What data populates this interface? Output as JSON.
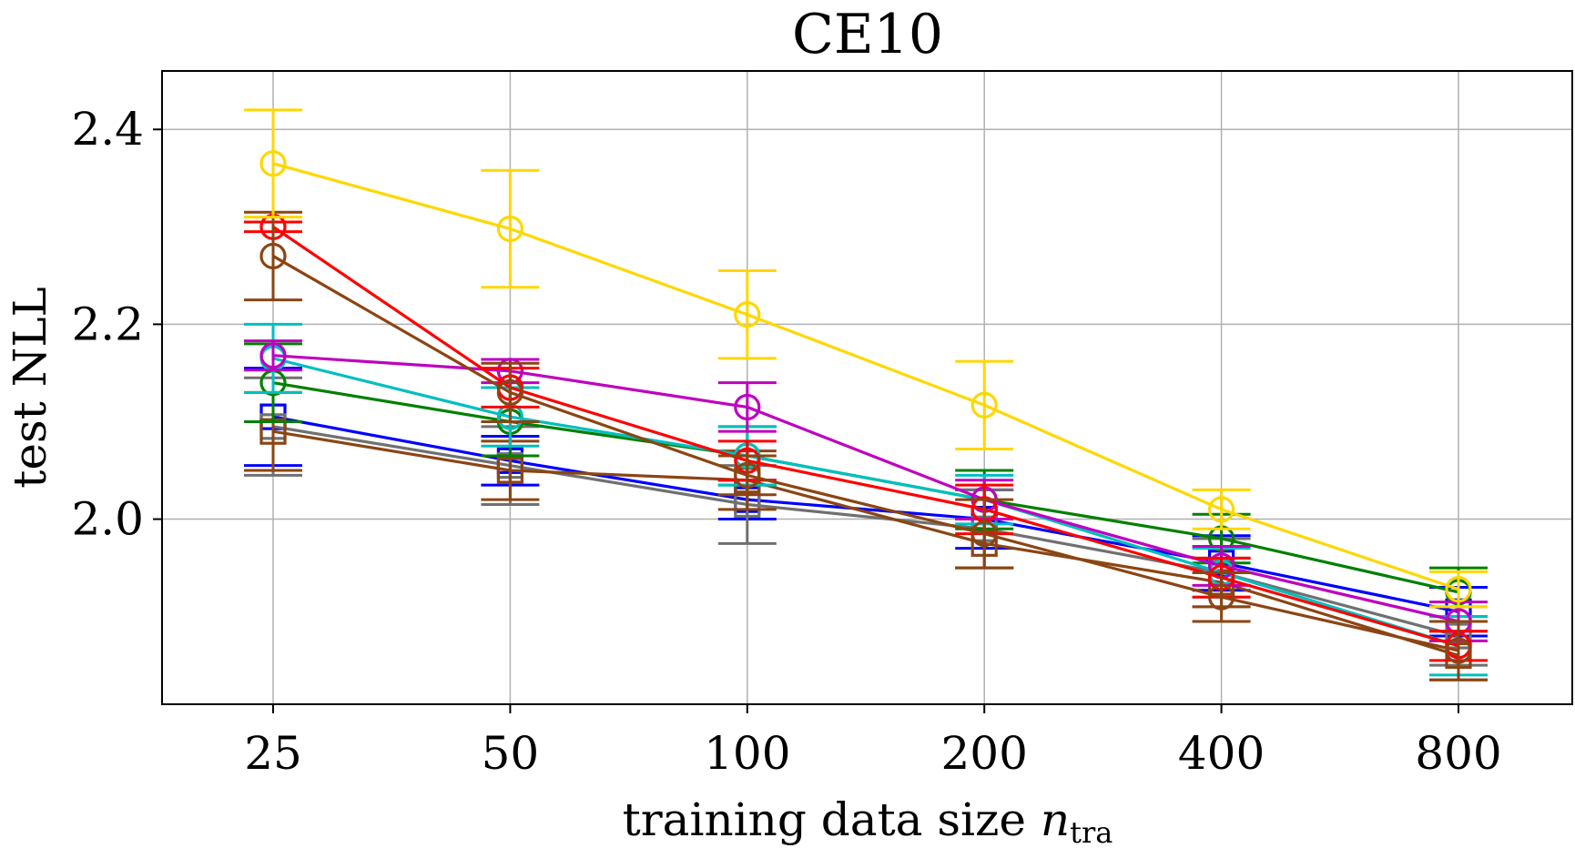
{
  "chart_data": {
    "type": "line",
    "title": "CE10",
    "xlabel": "training data size",
    "xlabel_sub_main": "n",
    "xlabel_sub": "tra",
    "ylabel": "test NLL",
    "categories": [
      "25",
      "50",
      "100",
      "200",
      "400",
      "800"
    ],
    "yticks": [
      "2.0",
      "2.2",
      "2.4"
    ],
    "ytick_values": [
      2.0,
      2.2,
      2.4
    ],
    "ylim": [
      1.81,
      2.46
    ],
    "grid": true,
    "legend": "none",
    "series": [
      {
        "name": "blue-square",
        "color": "#0000ff",
        "marker": "square",
        "values": [
          2.105,
          2.06,
          2.02,
          2.0,
          1.955,
          1.905
        ],
        "err": [
          0.05,
          0.025,
          0.02,
          0.03,
          0.028,
          0.025
        ]
      },
      {
        "name": "gray-square",
        "color": "#707070",
        "marker": "square",
        "values": [
          2.095,
          2.055,
          2.015,
          1.99,
          1.945,
          1.88
        ],
        "err": [
          0.05,
          0.04,
          0.04,
          0.04,
          0.035,
          0.03
        ]
      },
      {
        "name": "brown-square",
        "color": "#8b4513",
        "marker": "square",
        "values": [
          2.09,
          2.05,
          2.04,
          1.975,
          1.935,
          1.86
        ],
        "err": [
          0.04,
          0.03,
          0.03,
          0.025,
          0.025,
          0.025
        ]
      },
      {
        "name": "green-circle",
        "color": "#008000",
        "marker": "circle",
        "values": [
          2.14,
          2.1,
          2.065,
          2.02,
          1.98,
          1.925
        ],
        "err": [
          0.04,
          0.035,
          0.03,
          0.03,
          0.025,
          0.025
        ]
      },
      {
        "name": "cyan-circle",
        "color": "#00bfbf",
        "marker": "circle",
        "values": [
          2.165,
          2.105,
          2.065,
          2.02,
          1.945,
          1.87
        ],
        "err": [
          0.035,
          0.03,
          0.03,
          0.025,
          0.025,
          0.03
        ]
      },
      {
        "name": "magenta-circle",
        "color": "#bf00bf",
        "marker": "circle",
        "values": [
          2.168,
          2.152,
          2.115,
          2.02,
          1.952,
          1.895
        ],
        "err": [
          0.015,
          0.012,
          0.025,
          0.02,
          0.02,
          0.02
        ]
      },
      {
        "name": "red-circle",
        "color": "#ff0000",
        "marker": "circle",
        "values": [
          2.3,
          2.135,
          2.06,
          2.01,
          1.94,
          1.87
        ],
        "err": [
          0.005,
          0.02,
          0.02,
          0.025,
          0.02,
          0.015
        ]
      },
      {
        "name": "brown-circle",
        "color": "#8b4513",
        "marker": "circle",
        "values": [
          2.27,
          2.13,
          2.045,
          1.985,
          1.92,
          1.865
        ],
        "err": [
          0.045,
          0.03,
          0.02,
          0.035,
          0.025,
          0.03
        ]
      },
      {
        "name": "gold-circle",
        "color": "#ffd700",
        "marker": "circle",
        "values": [
          2.365,
          2.298,
          2.21,
          2.117,
          2.01,
          1.928
        ],
        "err": [
          0.055,
          0.06,
          0.045,
          0.045,
          0.02,
          0.018
        ]
      }
    ]
  }
}
